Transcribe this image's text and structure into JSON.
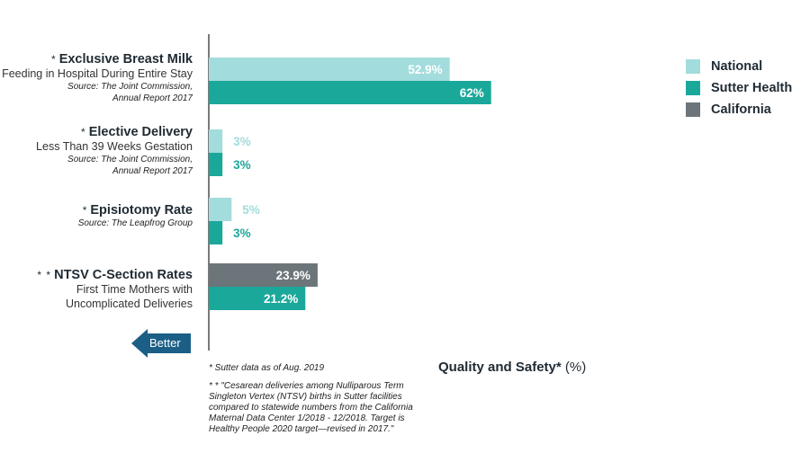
{
  "chart_data": {
    "type": "bar",
    "orientation": "horizontal",
    "axis_title": "Quality and Safety*",
    "axis_unit": "(%)",
    "xlim": [
      0,
      100
    ],
    "legend_position": "top-right",
    "series": [
      {
        "name": "National",
        "color": "#a3dcdc"
      },
      {
        "name": "Sutter Health",
        "color": "#1aa89a"
      },
      {
        "name": "California",
        "color": "#6c757a"
      }
    ],
    "groups": [
      {
        "asterisks": "*",
        "title": "Exclusive Breast Milk",
        "subtitle": [
          "Feeding in Hospital During Entire Stay"
        ],
        "source": [
          "Source: The Joint Commission,",
          "Annual Report 2017"
        ],
        "bars": [
          {
            "series": "National",
            "value": 52.9,
            "label": "52.9%"
          },
          {
            "series": "Sutter Health",
            "value": 62,
            "label": "62%"
          }
        ]
      },
      {
        "asterisks": "*",
        "title": "Elective Delivery",
        "subtitle": [
          "Less Than 39 Weeks Gestation"
        ],
        "source": [
          "Source: The Joint Commission,",
          "Annual Report 2017"
        ],
        "bars": [
          {
            "series": "National",
            "value": 3,
            "label": "3%"
          },
          {
            "series": "Sutter Health",
            "value": 3,
            "label": "3%"
          }
        ]
      },
      {
        "asterisks": "*",
        "title": "Episiotomy Rate",
        "subtitle": [],
        "source": [
          "Source: The Leapfrog Group"
        ],
        "bars": [
          {
            "series": "National",
            "value": 5,
            "label": "5%"
          },
          {
            "series": "Sutter Health",
            "value": 3,
            "label": "3%"
          }
        ]
      },
      {
        "asterisks": "* *",
        "title": "NTSV C-Section Rates",
        "subtitle": [
          "First Time Mothers with",
          "Uncomplicated Deliveries"
        ],
        "source": [],
        "bars": [
          {
            "series": "California",
            "value": 23.9,
            "label": "23.9%"
          },
          {
            "series": "Sutter Health",
            "value": 21.2,
            "label": "21.2%"
          }
        ]
      }
    ],
    "direction_label": "Better",
    "direction_color": "#1b5f86",
    "notes": [
      "* Sutter data as of Aug. 2019",
      "* * \"Cesarean deliveries among Nulliparous Term Singleton Vertex (NTSV) births in Sutter facilities compared to statewide numbers from the California Maternal Data Center 1/2018 - 12/2018. Target is Healthy People 2020 target—revised in 2017.\""
    ]
  }
}
